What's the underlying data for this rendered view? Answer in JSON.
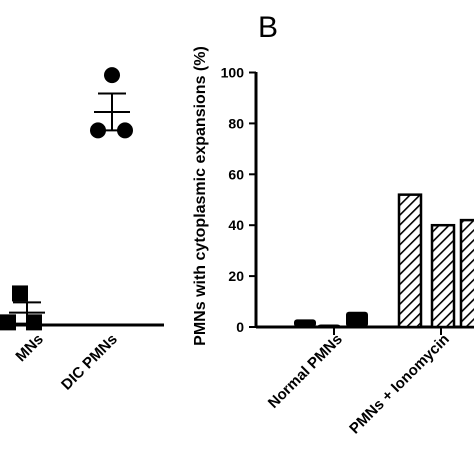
{
  "chart_data": [
    {
      "type": "scatter",
      "panel": "",
      "categories": [
        "Normal PMNs",
        "DIC PMNs"
      ],
      "category_labels_visible": [
        "MNs",
        "DIC  PMNs"
      ],
      "points": [
        {
          "category": "Normal PMNs",
          "marker": "square",
          "y": 12
        },
        {
          "category": "Normal PMNs",
          "marker": "square",
          "y": 1
        },
        {
          "category": "Normal PMNs",
          "marker": "square",
          "y": 1
        },
        {
          "category": "DIC PMNs",
          "marker": "circle",
          "y": 95
        },
        {
          "category": "DIC PMNs",
          "marker": "circle",
          "y": 74
        },
        {
          "category": "DIC PMNs",
          "marker": "circle",
          "y": 74
        }
      ],
      "summary": [
        {
          "category": "Normal PMNs",
          "mean": 4.7,
          "sem_low": 0.5,
          "sem_high": 8.6
        },
        {
          "category": "DIC PMNs",
          "mean": 81,
          "sem_low": 74,
          "sem_high": 88
        }
      ]
    },
    {
      "type": "bar",
      "panel": "B",
      "ylabel": "PMNs with cytoplasmic expansions (%)",
      "ylim": [
        0,
        100
      ],
      "yticks": [
        0,
        20,
        40,
        60,
        80,
        100
      ],
      "categories": [
        "Normal PMNs",
        "PMNs + Ionomycin"
      ],
      "bars": [
        {
          "category": "Normal PMNs",
          "style": "solid",
          "value": 3
        },
        {
          "category": "Normal PMNs",
          "style": "solid",
          "value": 1
        },
        {
          "category": "Normal PMNs",
          "style": "solid",
          "value": 6
        },
        {
          "category": "PMNs + Ionomycin",
          "style": "hatched",
          "value": 52
        },
        {
          "category": "PMNs + Ionomycin",
          "style": "hatched",
          "value": 40
        },
        {
          "category": "PMNs + Ionomycin",
          "style": "hatched",
          "value": 42
        }
      ]
    }
  ]
}
